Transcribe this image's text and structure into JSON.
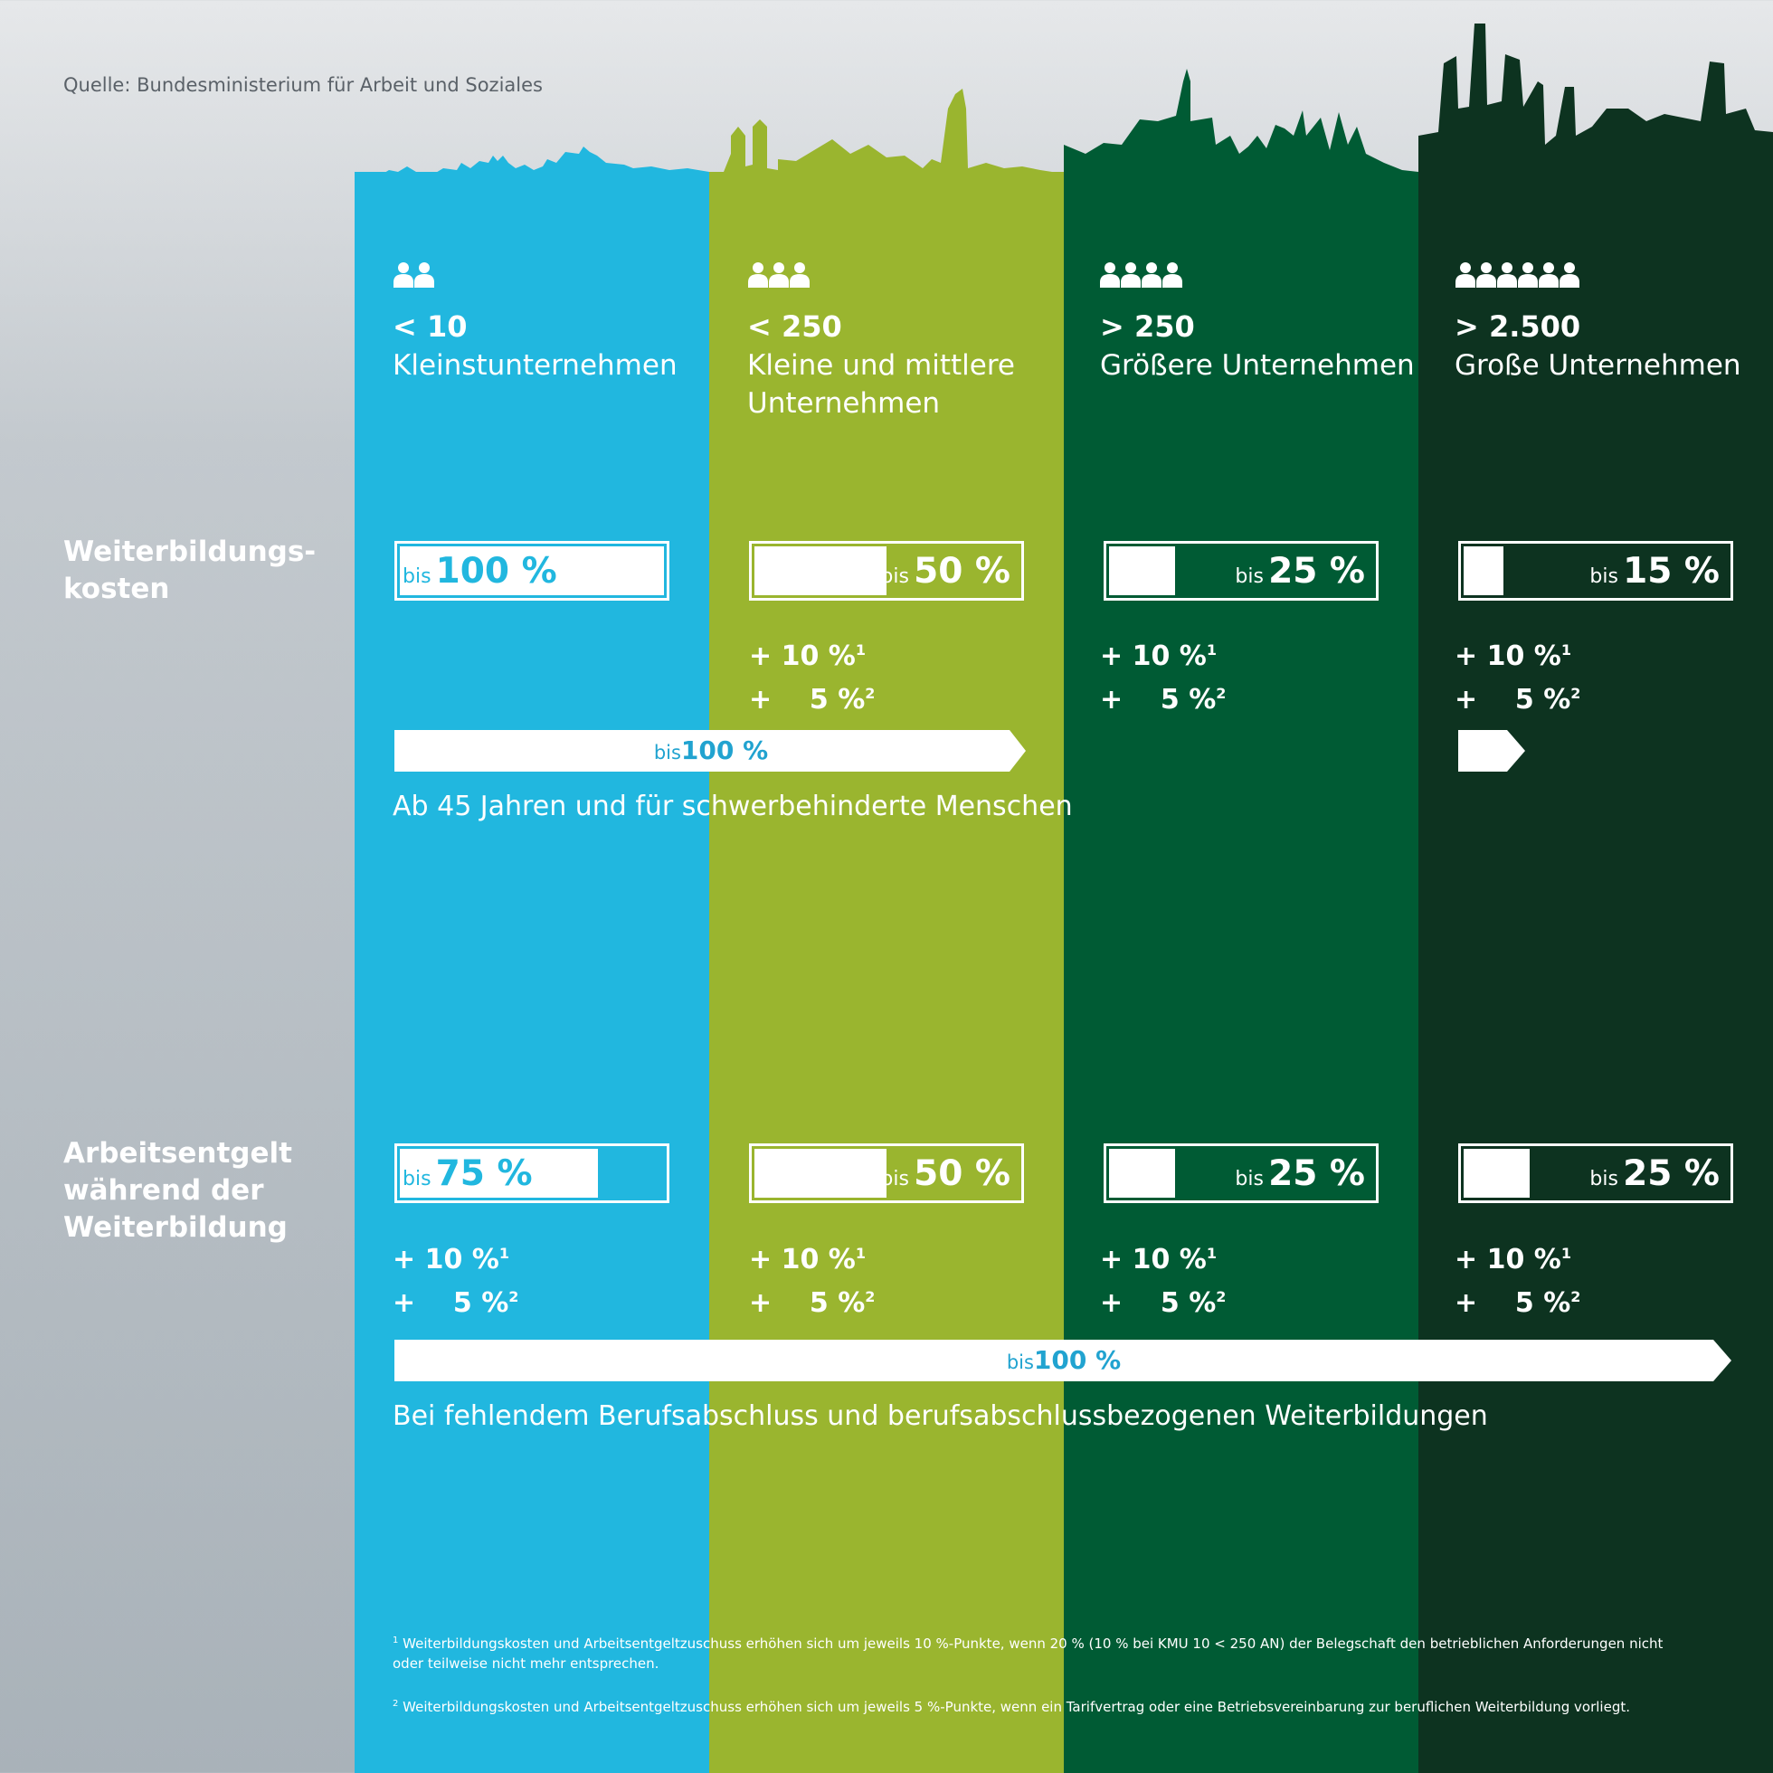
{
  "source": "Quelle: Bundesministerium für Arbeit und Soziales",
  "colors": {
    "blue": "#21b7df",
    "lime": "#9ab52f",
    "green": "#005b34",
    "dark": "#0d3320"
  },
  "row_labels": {
    "costs": [
      "Weiterbildungs-",
      "kosten"
    ],
    "wage": [
      "Arbeitsentgelt",
      "während der",
      "Weiterbildung"
    ]
  },
  "columns": [
    {
      "icon": "people-2-icon",
      "people": 2,
      "count": "< 10",
      "name": "Kleinstunternehmen",
      "costs": {
        "bis": "bis",
        "pct": "100 %",
        "fraction": 1.0
      },
      "wage": {
        "bis": "bis",
        "pct": "75 %",
        "fraction": 0.75
      },
      "wage_plus": [
        "+ 10 %",
        "1",
        "+    5 %",
        "2"
      ]
    },
    {
      "icon": "people-3-icon",
      "people": 3,
      "count": "< 250",
      "name": "Kleine und mittlere Unternehmen",
      "costs": {
        "bis": "bis",
        "pct": "50 %",
        "fraction": 0.5
      },
      "costs_plus": [
        "+ 10 %",
        "1",
        "+    5 %",
        "2"
      ],
      "wage": {
        "bis": "bis",
        "pct": "50 %",
        "fraction": 0.5
      },
      "wage_plus": [
        "+ 10 %",
        "1",
        "+    5 %",
        "2"
      ]
    },
    {
      "icon": "people-4-icon",
      "people": 4,
      "count": "> 250",
      "name": "Größere Unternehmen",
      "costs": {
        "bis": "bis",
        "pct": "25 %",
        "fraction": 0.25
      },
      "costs_plus": [
        "+ 10 %",
        "1",
        "+    5 %",
        "2"
      ],
      "wage": {
        "bis": "bis",
        "pct": "25 %",
        "fraction": 0.25
      },
      "wage_plus": [
        "+ 10 %",
        "1",
        "+    5 %",
        "2"
      ]
    },
    {
      "icon": "people-6-icon",
      "people": 6,
      "count": "> 2.500",
      "name": "Große Unternehmen",
      "costs": {
        "bis": "bis",
        "pct": "15 %",
        "fraction": 0.15
      },
      "costs_plus": [
        "+ 10 %",
        "1",
        "+    5 %",
        "2"
      ],
      "wage": {
        "bis": "bis",
        "pct": "25 %",
        "fraction": 0.25
      },
      "wage_plus": [
        "+ 10 %",
        "1",
        "+    5 %",
        "2"
      ]
    }
  ],
  "arrow1": {
    "bis": "bis",
    "pct": "100 %",
    "note": "Ab 45 Jahren und für schwerbehinderte Menschen"
  },
  "arrow2": {
    "bis": "bis",
    "pct": "100 %",
    "note": "Bei fehlendem Berufsabschluss und berufsabschlussbezogenen Weiterbildungen"
  },
  "footnotes": [
    {
      "mark": "1",
      "text": "Weiterbildungskosten und Arbeitsentgeltzuschuss erhöhen sich um jeweils 10 %-Punkte, wenn 20 % (10 % bei KMU 10 < 250 AN) der Belegschaft den betrieblichen Anforderungen nicht oder teilweise nicht mehr entsprechen."
    },
    {
      "mark": "2",
      "text": "Weiterbildungskosten und Arbeitsentgeltzuschuss erhöhen sich um jeweils 5 %-Punkte, wenn ein Tarifvertrag oder eine Betriebsvereinbarung zur beruflichen Weiterbildung vorliegt."
    }
  ]
}
